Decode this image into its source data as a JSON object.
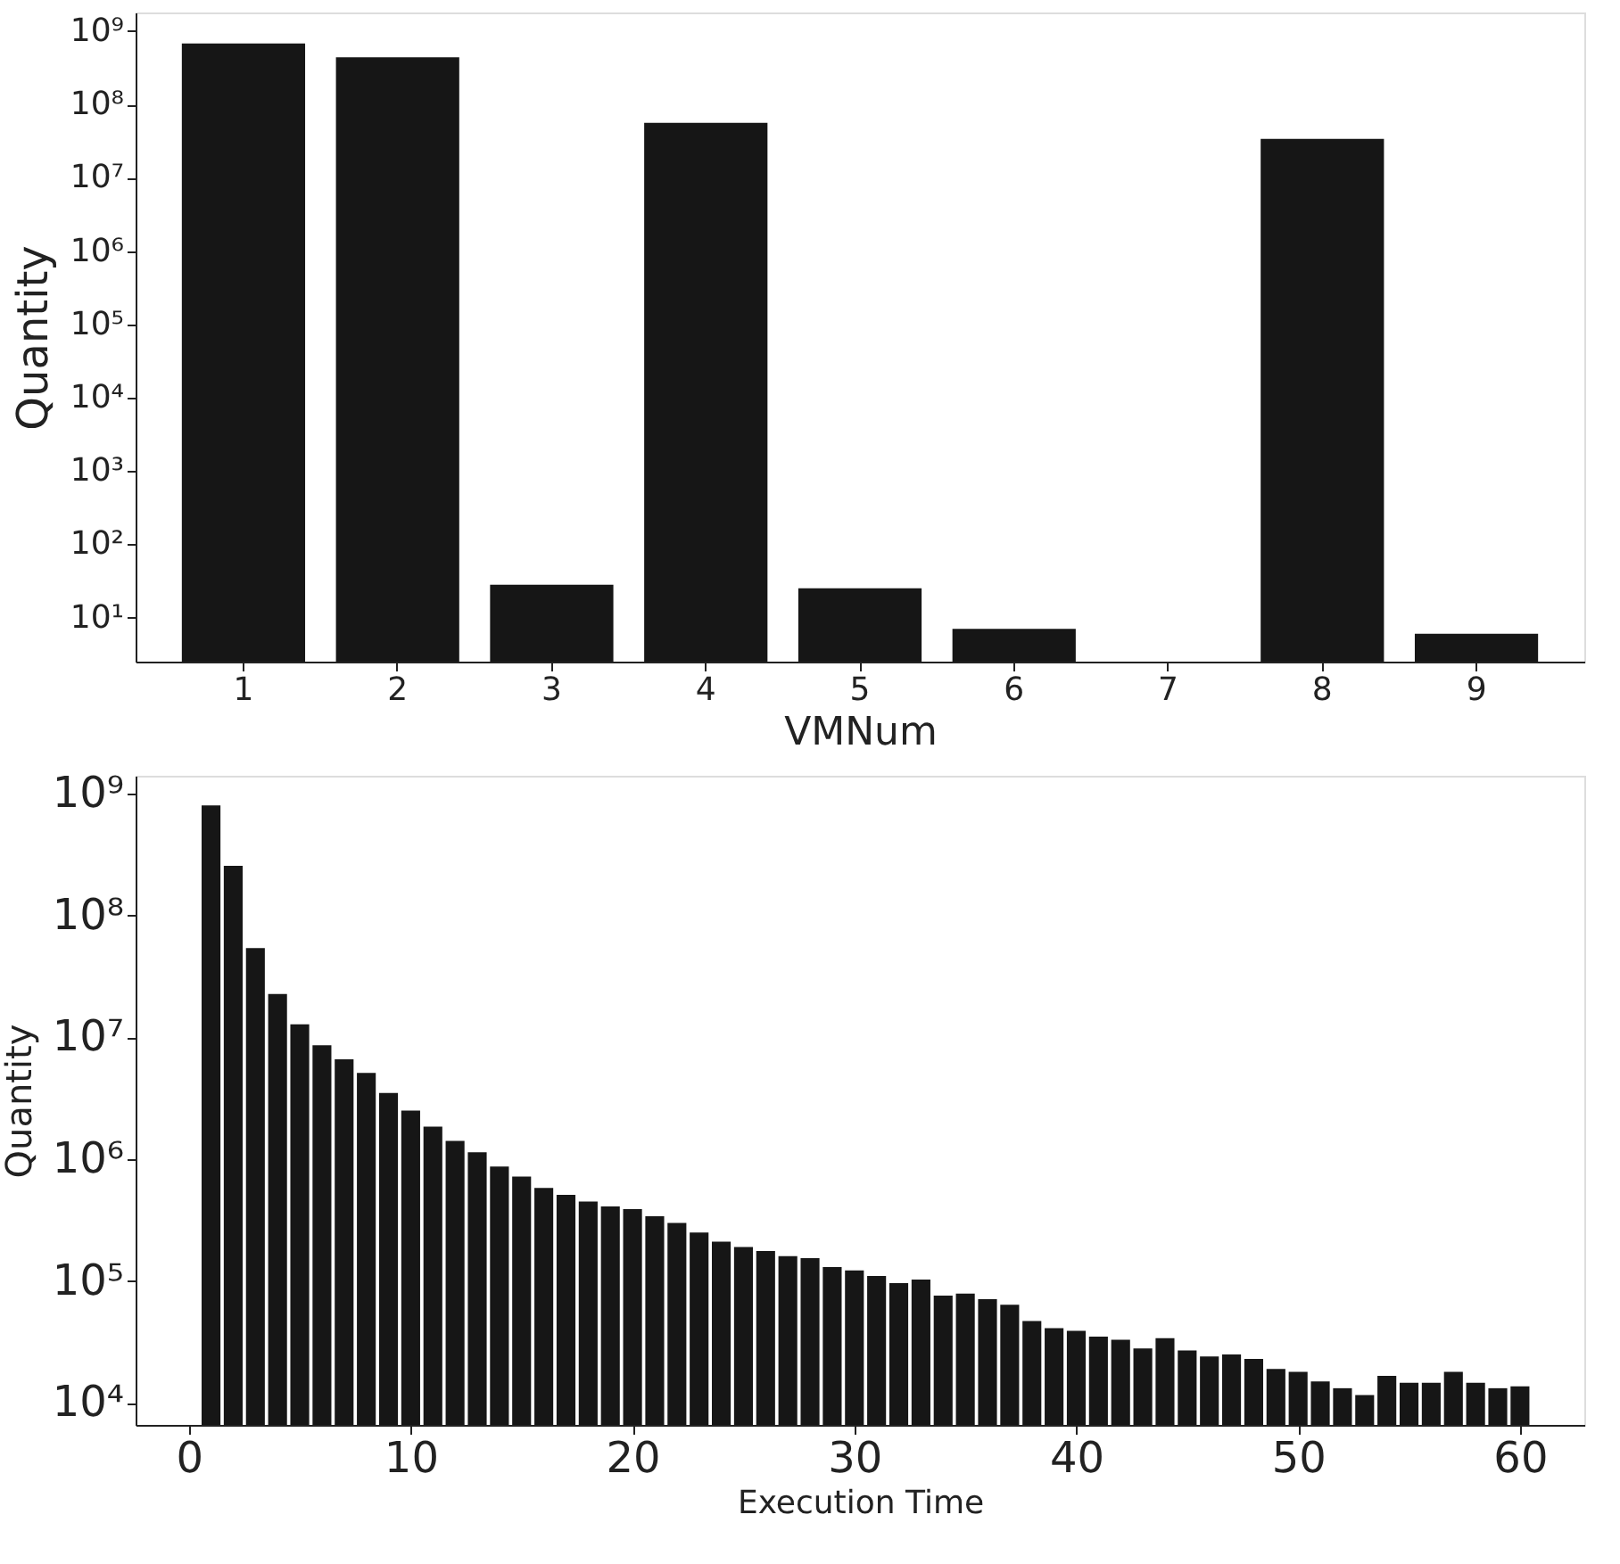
{
  "chart_data": [
    {
      "type": "bar",
      "xlabel": "VMNum",
      "ylabel": "Quantity",
      "color": "#161616",
      "log": true,
      "grid": false,
      "categories": [
        "1",
        "2",
        "3",
        "4",
        "5",
        "6",
        "7",
        "8",
        "9"
      ],
      "values": [
        680000000,
        440000000,
        28,
        56000000,
        25,
        7,
        null,
        34000000,
        6
      ],
      "ylim": [
        2.5,
        1800000000
      ],
      "yticks": [
        {
          "value": 10,
          "label": "10¹"
        },
        {
          "value": 100,
          "label": "10²"
        },
        {
          "value": 1000,
          "label": "10³"
        },
        {
          "value": 10000,
          "label": "10⁴"
        },
        {
          "value": 100000,
          "label": "10⁵"
        },
        {
          "value": 1000000,
          "label": "10⁶"
        },
        {
          "value": 10000000,
          "label": "10⁷"
        },
        {
          "value": 100000000,
          "label": "10⁸"
        },
        {
          "value": 1000000000,
          "label": "10⁹"
        }
      ]
    },
    {
      "type": "bar",
      "xlabel": "Execution Time",
      "ylabel": "Quantity",
      "color": "#161616",
      "log": true,
      "grid": false,
      "x": [
        1,
        2,
        3,
        4,
        5,
        6,
        7,
        8,
        9,
        10,
        11,
        12,
        13,
        14,
        15,
        16,
        17,
        18,
        19,
        20,
        21,
        22,
        23,
        24,
        25,
        26,
        27,
        28,
        29,
        30,
        31,
        32,
        33,
        34,
        35,
        36,
        37,
        38,
        39,
        40,
        41,
        42,
        43,
        44,
        45,
        46,
        47,
        48,
        49,
        50,
        51,
        52,
        53,
        54,
        55,
        56,
        57,
        58,
        59,
        60
      ],
      "values": [
        800000000,
        255000000,
        54000000,
        22700000,
        12800000,
        8600000,
        6600000,
        5100000,
        3500000,
        2500000,
        1850000,
        1410000,
        1140000,
        870000,
        720000,
        580000,
        510000,
        450000,
        410000,
        390000,
        340000,
        300000,
        250000,
        210000,
        190000,
        176000,
        160000,
        154000,
        130000,
        122000,
        110000,
        96000,
        103000,
        76000,
        79000,
        71000,
        64000,
        47000,
        41000,
        39000,
        35000,
        33000,
        28000,
        34000,
        27000,
        24000,
        25000,
        23000,
        19000,
        18000,
        15000,
        13200,
        11600,
        16700,
        14600,
        14600,
        18000,
        14600,
        13200,
        13700
      ],
      "xlim": [
        -2.4,
        62.9
      ],
      "xticks": [
        0,
        10,
        20,
        30,
        40,
        50,
        60
      ],
      "ylim": [
        6600,
        1400000000
      ],
      "yticks": [
        {
          "value": 10000,
          "label": "10⁴"
        },
        {
          "value": 100000,
          "label": "10⁵"
        },
        {
          "value": 1000000,
          "label": "10⁶"
        },
        {
          "value": 10000000,
          "label": "10⁷"
        },
        {
          "value": 100000000,
          "label": "10⁸"
        },
        {
          "value": 1000000000,
          "label": "10⁹"
        }
      ]
    }
  ]
}
